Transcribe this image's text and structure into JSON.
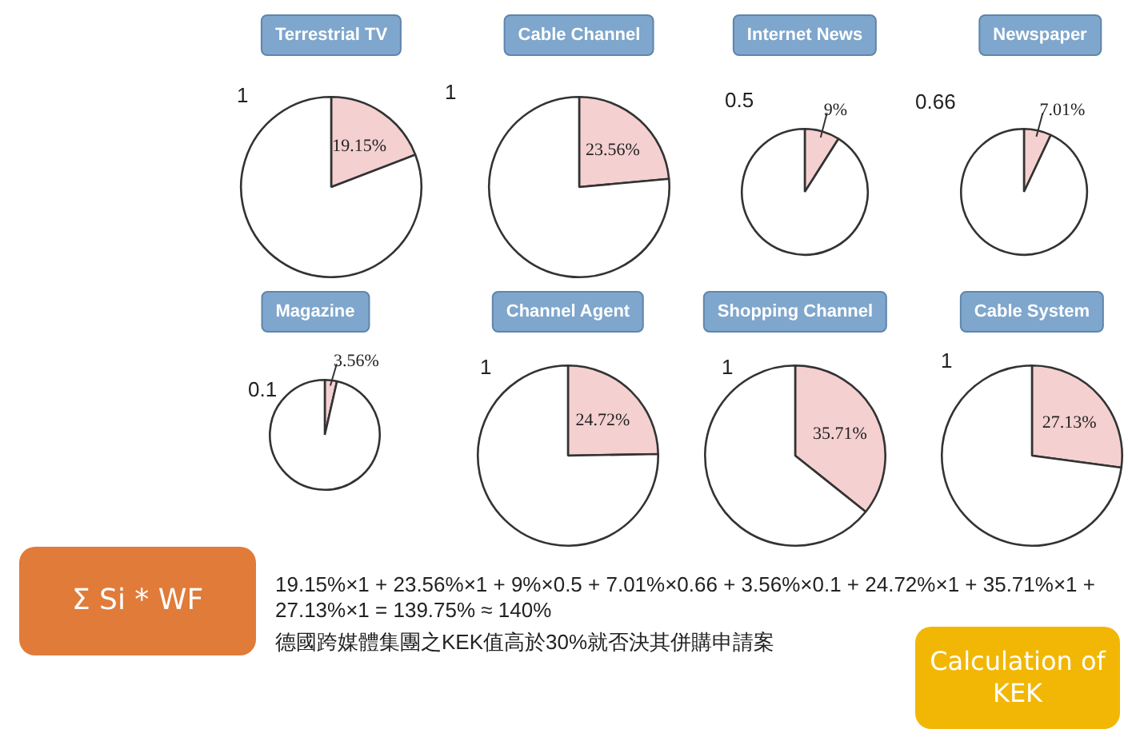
{
  "chart_data": [
    {
      "type": "pie",
      "title": "Terrestrial TV",
      "categories": [
        null,
        null
      ],
      "values": [
        19.15,
        80.85
      ],
      "colors": [
        "#f5d0d0",
        "#ffffff"
      ],
      "value_labels": [
        "19.15%",
        null
      ],
      "annotations": [
        "1"
      ]
    },
    {
      "type": "pie",
      "title": "Cable Channel",
      "categories": [
        null,
        null
      ],
      "values": [
        23.56,
        76.44
      ],
      "colors": [
        "#f5d0d0",
        "#ffffff"
      ],
      "value_labels": [
        "23.56%",
        null
      ],
      "annotations": [
        "1"
      ]
    },
    {
      "type": "pie",
      "title": "Internet News",
      "categories": [
        null,
        null
      ],
      "values": [
        9,
        91
      ],
      "colors": [
        "#f5d0d0",
        "#ffffff"
      ],
      "value_labels": [
        "9%",
        null
      ],
      "annotations": [
        "0.5"
      ]
    },
    {
      "type": "pie",
      "title": "Newspaper",
      "categories": [
        null,
        null
      ],
      "values": [
        7.01,
        92.99
      ],
      "colors": [
        "#f5d0d0",
        "#ffffff"
      ],
      "value_labels": [
        "7.01%",
        null
      ],
      "annotations": [
        "0.66"
      ]
    },
    {
      "type": "pie",
      "title": "Magazine",
      "categories": [
        null,
        null
      ],
      "values": [
        3.56,
        96.44
      ],
      "colors": [
        "#f5d0d0",
        "#ffffff"
      ],
      "value_labels": [
        "3.56%",
        null
      ],
      "annotations": [
        "0.1"
      ]
    },
    {
      "type": "pie",
      "title": "Channel Agent",
      "categories": [
        null,
        null
      ],
      "values": [
        24.72,
        75.28
      ],
      "colors": [
        "#f5d0d0",
        "#ffffff"
      ],
      "value_labels": [
        "24.72%",
        null
      ],
      "annotations": [
        "1"
      ]
    },
    {
      "type": "pie",
      "title": "Shopping Channel",
      "categories": [
        null,
        null
      ],
      "values": [
        35.71,
        64.29
      ],
      "colors": [
        "#f5d0d0",
        "#ffffff"
      ],
      "value_labels": [
        "35.71%",
        null
      ],
      "annotations": [
        "1"
      ]
    },
    {
      "type": "pie",
      "title": "Cable System",
      "categories": [
        null,
        null
      ],
      "values": [
        27.13,
        72.87
      ],
      "colors": [
        "#f5d0d0",
        "#ffffff"
      ],
      "value_labels": [
        "27.13%",
        null
      ],
      "annotations": [
        "1"
      ]
    },
    {
      "type": "other",
      "annotations": [
        "Σ Si * WF",
        "19.15%×1 + 23.56%×1 + 9%×0.5 + 7.01%×0.66 + 3.56%×0.1 + 24.72%×1 + 35.71%×1 + 27.13%×1 = 139.75% ≈ 140%",
        "德國跨媒體集團之KEK值高於30%就否決其併購申請案",
        "Calculation of KEK"
      ]
    }
  ]
}
